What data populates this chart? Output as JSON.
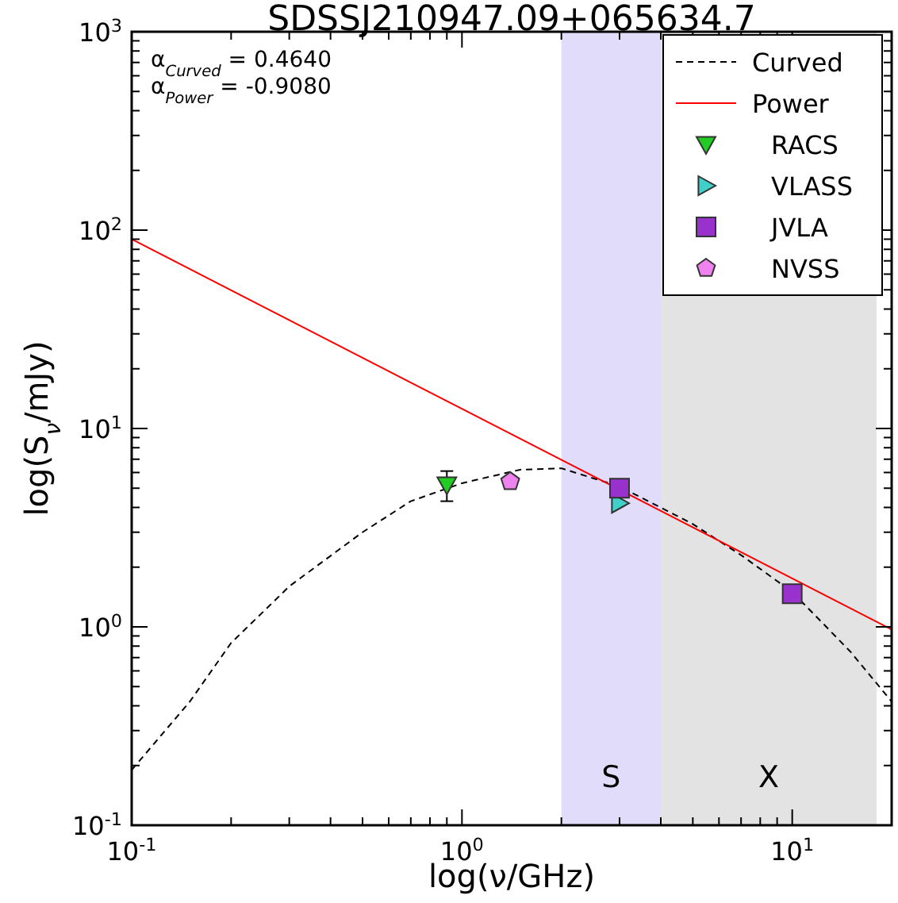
{
  "chart_data": {
    "type": "scatter",
    "title": "SDSSJ210947.09+065634.7",
    "xlabel": "log(ν/GHz)",
    "ylabel": "log(S$_{ν}$/mJy)",
    "log": "xy",
    "grid": false,
    "legend": "top right",
    "xlim": [
      0.1,
      20
    ],
    "ylim": [
      0.1,
      1000
    ],
    "xticks": [
      {
        "value": 0.1,
        "label": "10$^{-1}$"
      },
      {
        "value": 1,
        "label": "10$^{0}$"
      },
      {
        "value": 10,
        "label": "10$^{1}$"
      }
    ],
    "yticks": [
      {
        "value": 0.1,
        "label": "10$^{-1}$"
      },
      {
        "value": 1,
        "label": "10$^{0}$"
      },
      {
        "value": 10,
        "label": "10$^{1}$"
      },
      {
        "value": 100,
        "label": "10$^{2}$"
      },
      {
        "value": 1000,
        "label": "10$^{3}$"
      }
    ],
    "bands": [
      {
        "axis": "x",
        "from": 2,
        "to": 4,
        "label": "S",
        "color": "#e0dcfa"
      },
      {
        "axis": "x",
        "from": 4,
        "to": 18,
        "label": "X",
        "color": "#e3e3e3"
      }
    ],
    "annotations": [
      "α$_{Curved}$ = 0.4640",
      "α$_{Power}$ = -0.9080"
    ],
    "series": [
      {
        "name": "Curved",
        "type": "line",
        "color": "#000000",
        "line_style": "dashed",
        "x": [
          0.1,
          0.15,
          0.2,
          0.3,
          0.5,
          0.7,
          1,
          1.5,
          2,
          3,
          5,
          7,
          10,
          15,
          20
        ],
        "values": [
          0.19,
          0.42,
          0.83,
          1.6,
          3.0,
          4.3,
          5.3,
          6.2,
          6.3,
          5.1,
          3.3,
          2.3,
          1.5,
          0.75,
          0.42
        ]
      },
      {
        "name": "Power",
        "type": "line",
        "color": "#ff0000",
        "line_style": "solid",
        "x": [
          0.1,
          20
        ],
        "values": [
          90,
          0.97
        ]
      },
      {
        "name": "RACS",
        "color": "#22cc22",
        "marker": "triangle-down",
        "x": [
          0.9
        ],
        "values": [
          5.2
        ],
        "errors": [
          0.9
        ]
      },
      {
        "name": "VLASS",
        "color": "#40d0c8",
        "marker": "triangle-right",
        "x": [
          3.0
        ],
        "values": [
          4.2
        ]
      },
      {
        "name": "JVLA",
        "color": "#9932cc",
        "marker": "square",
        "x": [
          3.0,
          10
        ],
        "values": [
          5.0,
          1.47
        ]
      },
      {
        "name": "NVSS",
        "color": "#ee82ee",
        "x": [
          1.4
        ],
        "values": [
          5.4
        ]
      }
    ]
  }
}
